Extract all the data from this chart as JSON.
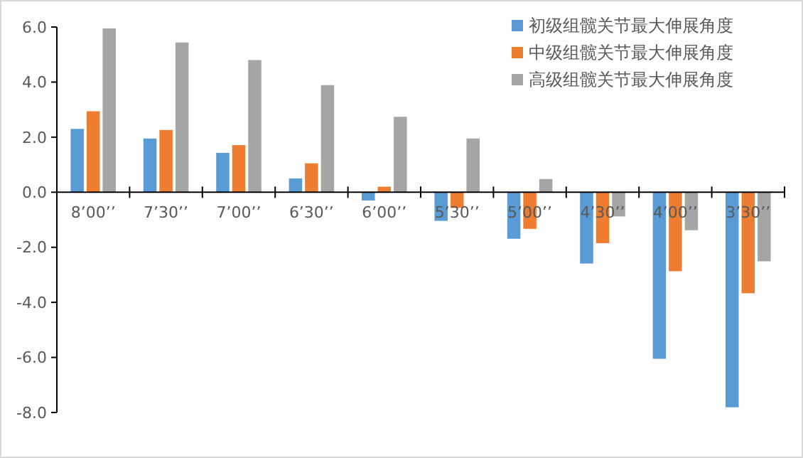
{
  "chart_data": {
    "type": "bar",
    "categories": [
      "8’00’’",
      "7’30’’",
      "7’00’’",
      "6’30’’",
      "6’00’’",
      "5’30’’",
      "5’00’’",
      "4’30’’",
      "4’00’’",
      "3’30’’"
    ],
    "series": [
      {
        "name": "初级组髋关节最大伸展角度",
        "color": "#5b9bd5",
        "values": [
          2.3,
          1.95,
          1.43,
          0.5,
          -0.3,
          -1.04,
          -1.69,
          -2.59,
          -6.05,
          -7.81
        ]
      },
      {
        "name": "中级组髋关节最大伸展角度",
        "color": "#ed7d31",
        "values": [
          2.94,
          2.26,
          1.71,
          1.05,
          0.2,
          -0.57,
          -1.33,
          -1.85,
          -2.87,
          -3.67
        ]
      },
      {
        "name": "高级组髋关节最大伸展角度",
        "color": "#a5a5a5",
        "values": [
          5.95,
          5.44,
          4.8,
          3.89,
          2.74,
          1.95,
          0.48,
          -0.88,
          -1.38,
          -2.51
        ]
      }
    ],
    "ylim": [
      -8,
      6
    ],
    "yticks": [
      {
        "value": -8,
        "label": "-8.0"
      },
      {
        "value": -6,
        "label": "-6.0"
      },
      {
        "value": -4,
        "label": "-4.0"
      },
      {
        "value": -2,
        "label": "-2.0"
      },
      {
        "value": 0,
        "label": "0.0"
      },
      {
        "value": 2,
        "label": "2.0"
      },
      {
        "value": 4,
        "label": "4.0"
      },
      {
        "value": 6,
        "label": "6.0"
      }
    ],
    "grid": false,
    "legend": "top right"
  }
}
